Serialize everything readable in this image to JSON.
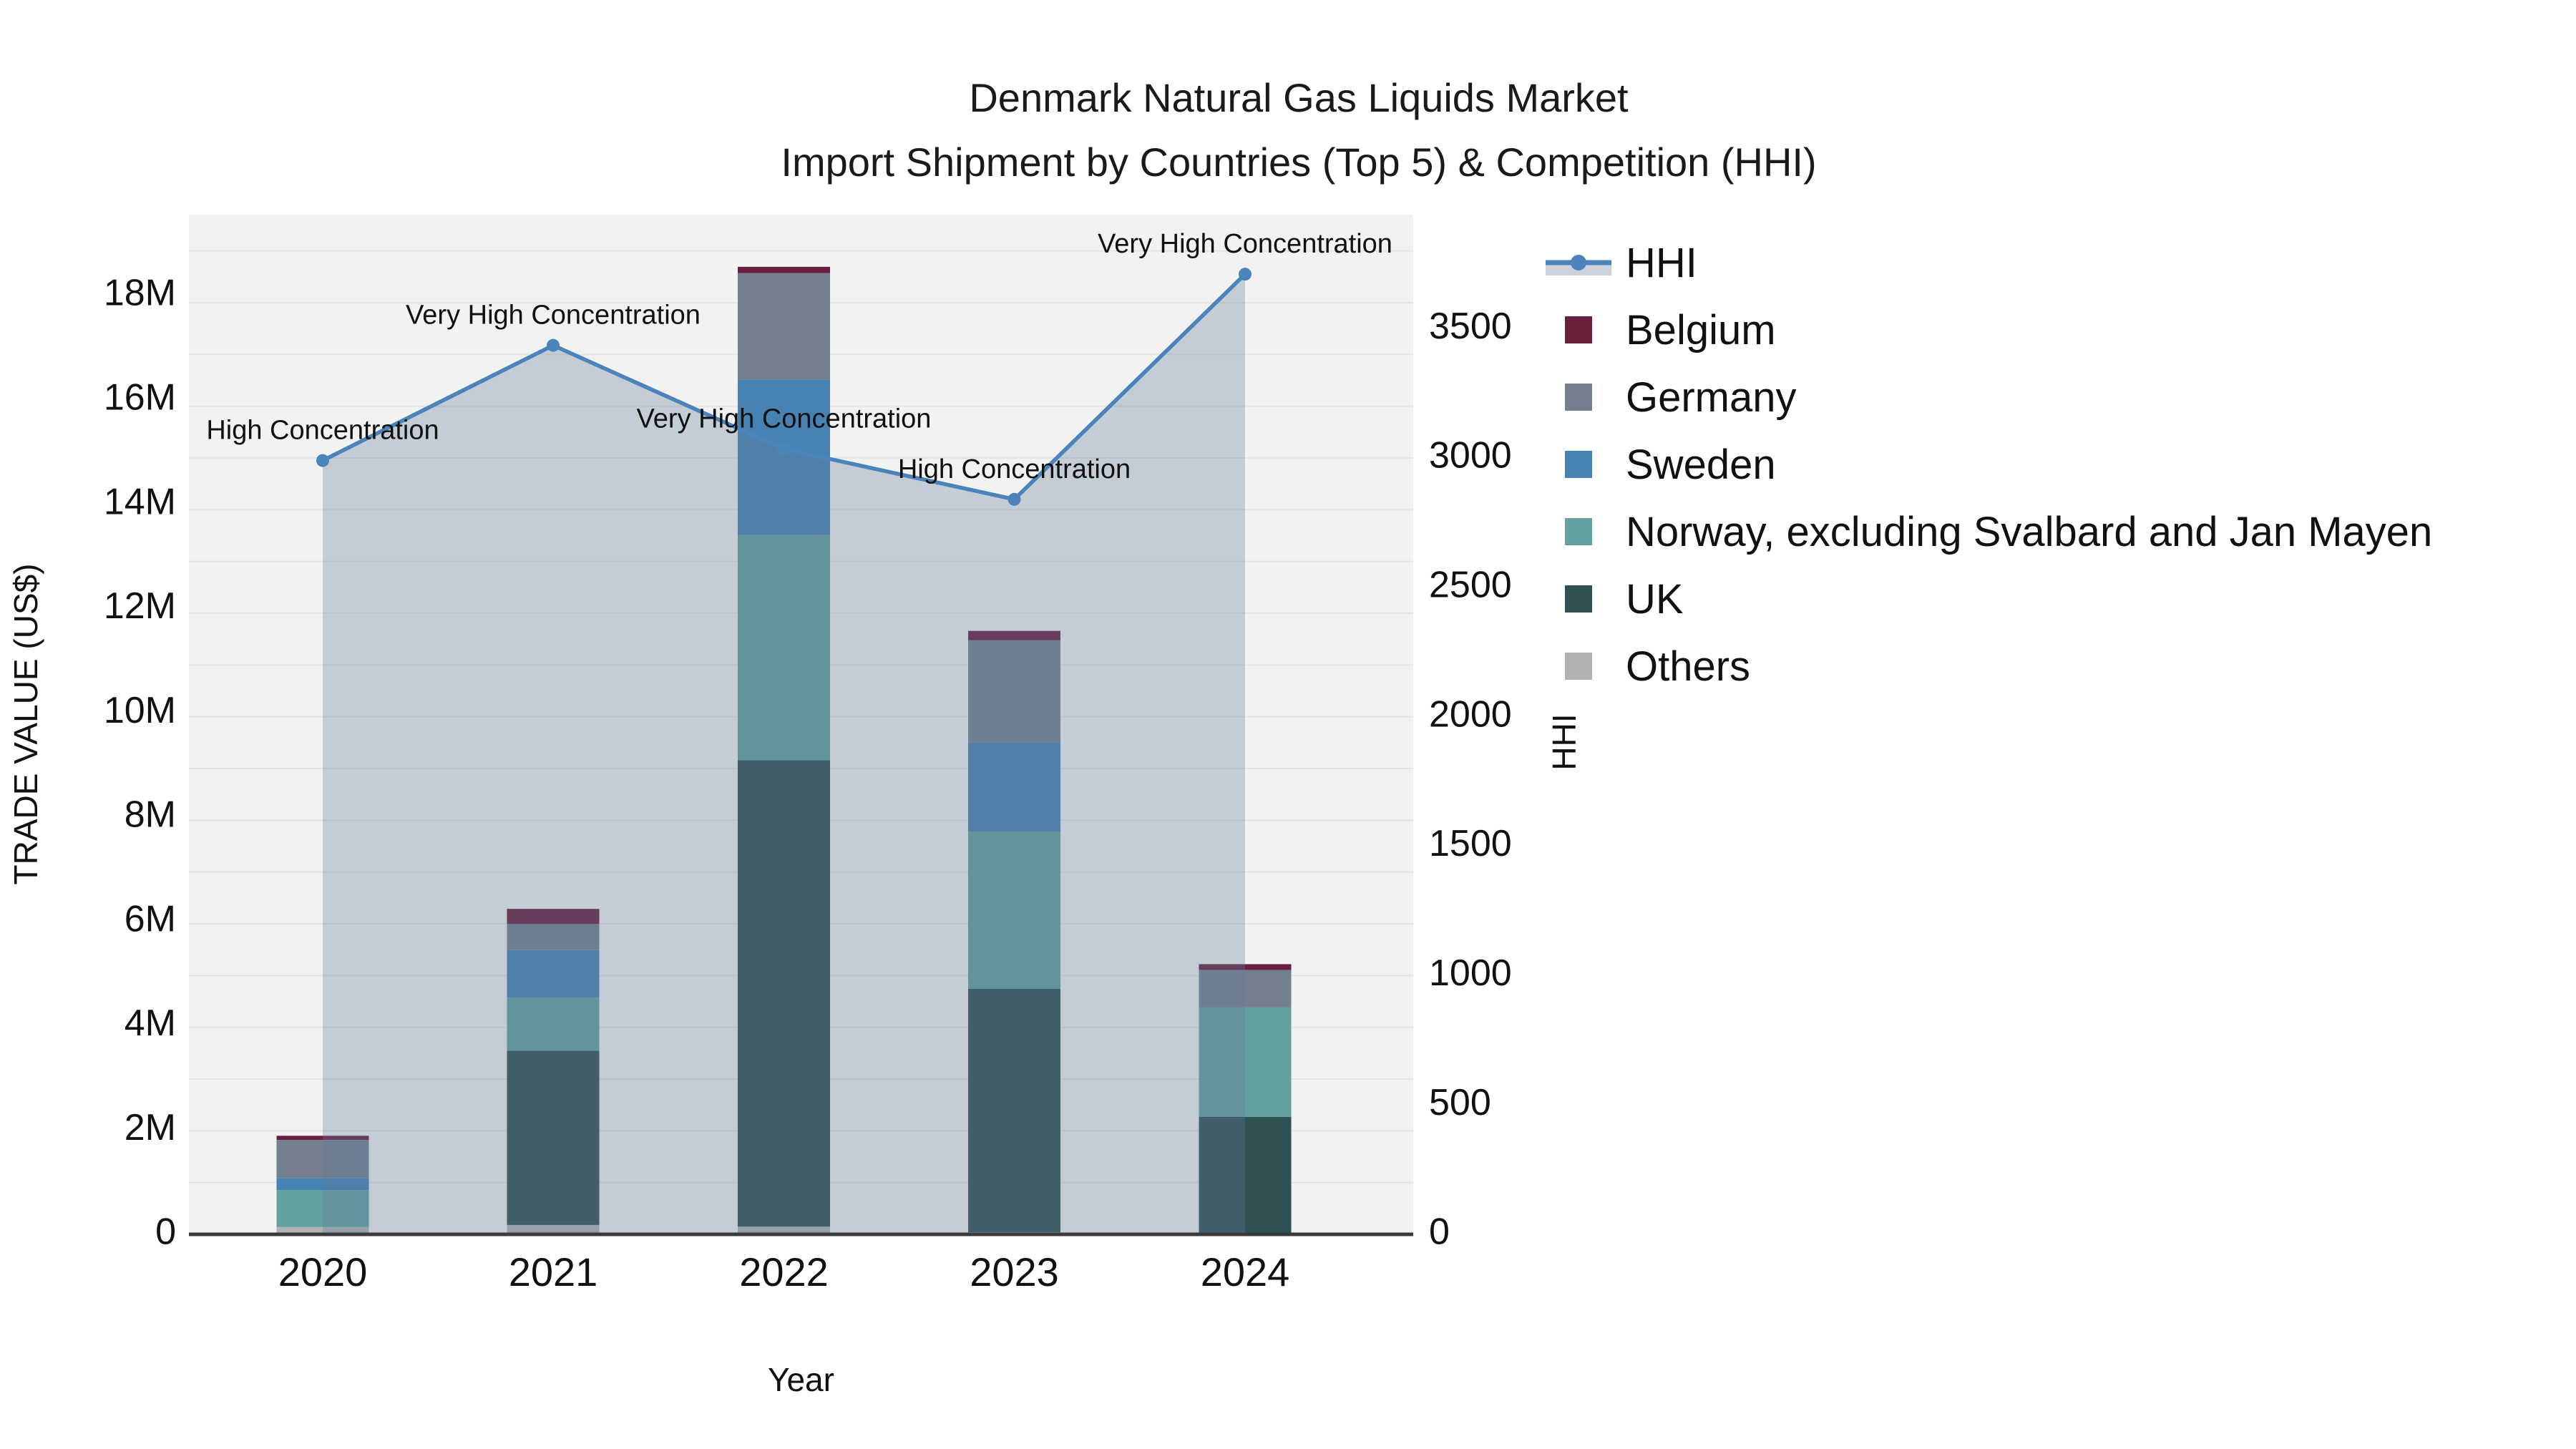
{
  "title": {
    "line1": "Denmark Natural Gas Liquids Market",
    "line2": "Import Shipment by Countries (Top 5) & Competition (HHI)"
  },
  "chart_data": {
    "type": "bar+line",
    "categories": [
      "2020",
      "2021",
      "2022",
      "2023",
      "2024"
    ],
    "xlabel": "Year",
    "ylabel_left": "TRADE VALUE (US$)",
    "ylabel_right": "HHI",
    "y_left_ticks": [
      "0",
      "2M",
      "4M",
      "6M",
      "8M",
      "10M",
      "12M",
      "14M",
      "16M",
      "18M"
    ],
    "y_left_tick_values": [
      0,
      2000000,
      4000000,
      6000000,
      8000000,
      10000000,
      12000000,
      14000000,
      16000000,
      18000000
    ],
    "y_left_max": 19550000,
    "y_right_ticks": [
      "0",
      "500",
      "1000",
      "1500",
      "2000",
      "2500",
      "3000",
      "3500"
    ],
    "y_right_tick_values": [
      0,
      500,
      1000,
      1500,
      2000,
      2500,
      3000,
      3500
    ],
    "y_right_max": 3940,
    "grid": true,
    "legend_position": "right",
    "series": [
      {
        "name": "Others",
        "color": "#b2b2b2",
        "values": [
          140000,
          180000,
          150000,
          40000,
          0
        ]
      },
      {
        "name": "UK",
        "color": "#2f5154",
        "values": [
          0,
          3340000,
          8940000,
          4670000,
          2250000
        ]
      },
      {
        "name": "Norway, excluding Svalbard and Jan Mayen",
        "color": "#63a0a0",
        "values": [
          710000,
          1020000,
          4320000,
          3010000,
          2100000
        ]
      },
      {
        "name": "Sweden",
        "color": "#4682b4",
        "values": [
          230000,
          910000,
          2980000,
          1710000,
          0
        ]
      },
      {
        "name": "Germany",
        "color": "#74808f",
        "values": [
          730000,
          500000,
          2040000,
          1960000,
          720000
        ]
      },
      {
        "name": "Belgium",
        "color": "#6b1f3f",
        "values": [
          80000,
          290000,
          120000,
          180000,
          110000
        ]
      }
    ],
    "line_series": {
      "name": "HHI",
      "color": "#4a84ba",
      "fill_color": "rgba(100,125,155,0.32)",
      "values": [
        2990,
        3435,
        3035,
        2840,
        3710
      ],
      "annotations": [
        "High Concentration",
        "Very High Concentration",
        "Very High Concentration",
        "High Concentration",
        "Very High Concentration"
      ]
    },
    "colors": {
      "plot_bg": "#f2f2f2",
      "grid": "#e4e4e4",
      "axis_line": "#3b3b3b",
      "text": "#111111"
    }
  },
  "legend": {
    "items": [
      {
        "label": "HHI",
        "type": "line",
        "color": "#4a84ba",
        "fill": "#ccd2db"
      },
      {
        "label": "Belgium",
        "type": "box",
        "color": "#6b1f3f"
      },
      {
        "label": "Germany",
        "type": "box",
        "color": "#74808f"
      },
      {
        "label": "Sweden",
        "type": "box",
        "color": "#4682b4"
      },
      {
        "label": "Norway, excluding Svalbard and Jan Mayen",
        "type": "box",
        "color": "#63a0a0"
      },
      {
        "label": "UK",
        "type": "box",
        "color": "#2f5154"
      },
      {
        "label": "Others",
        "type": "box",
        "color": "#b2b2b2"
      }
    ]
  }
}
